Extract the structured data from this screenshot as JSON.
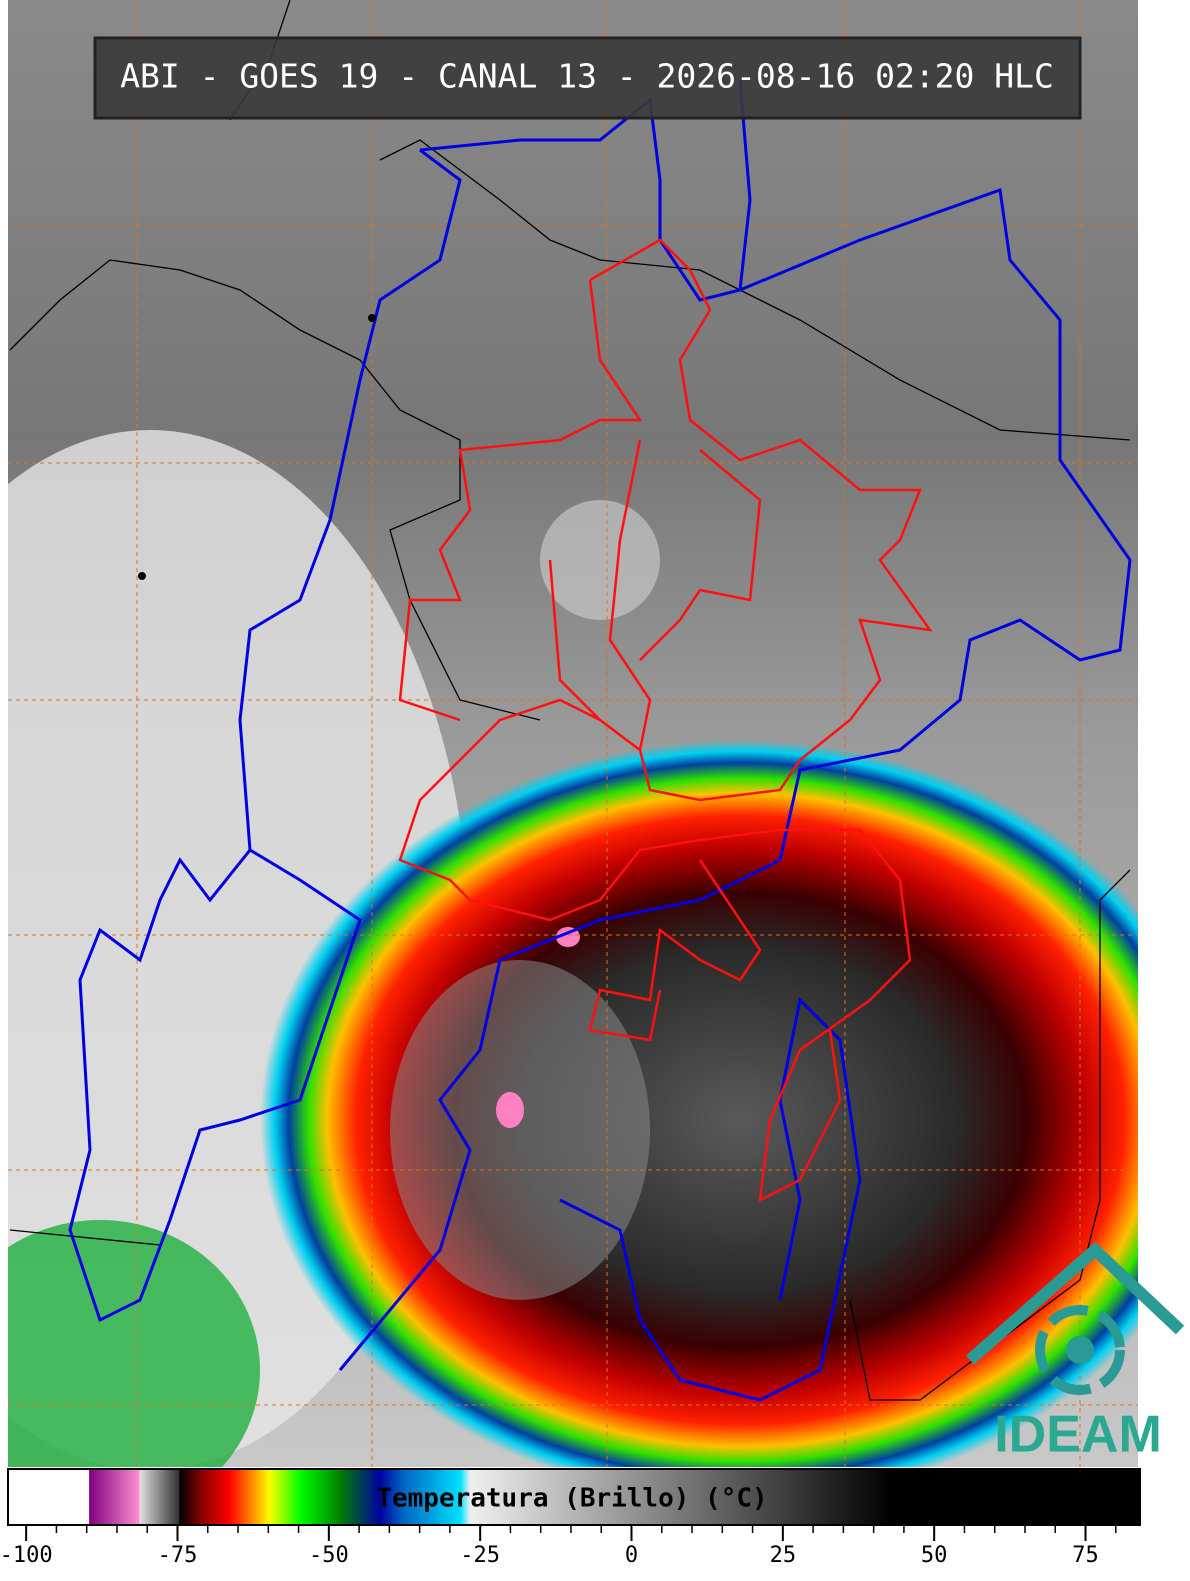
{
  "header": {
    "title": "ABI - GOES 19 - CANAL 13 - 2026-08-16 02:20 HLC"
  },
  "colorbar": {
    "label": "Temperatura (Brillo) (°C)",
    "lim": [
      -103,
      84
    ],
    "ticks": [
      -100,
      -75,
      -50,
      -25,
      0,
      25,
      50,
      75
    ],
    "minor_ticks": [
      -95,
      -90,
      -85,
      -80,
      -70,
      -65,
      -60,
      -55,
      -45,
      -40,
      -35,
      -30,
      -20,
      -15,
      -10,
      -5,
      5,
      10,
      15,
      20,
      30,
      35,
      40,
      45,
      55,
      60,
      65,
      70,
      80
    ],
    "color_stops": [
      {
        "value": -103,
        "color": "#ffffff"
      },
      {
        "value": -89.6,
        "color": "#ffffff"
      },
      {
        "value": -89.6,
        "color": "#800080"
      },
      {
        "value": -81.3,
        "color": "#ff90d0"
      },
      {
        "value": -81.3,
        "color": "#e0e0e0"
      },
      {
        "value": -74.7,
        "color": "#303030"
      },
      {
        "value": -74.7,
        "color": "#000000"
      },
      {
        "value": -71.4,
        "color": "#800000"
      },
      {
        "value": -66.4,
        "color": "#ff0000"
      },
      {
        "value": -63,
        "color": "#ff8000"
      },
      {
        "value": -59.8,
        "color": "#ffff00"
      },
      {
        "value": -54.8,
        "color": "#00ff00"
      },
      {
        "value": -48.2,
        "color": "#008000"
      },
      {
        "value": -41.6,
        "color": "#0000a0"
      },
      {
        "value": -38,
        "color": "#0060c0"
      },
      {
        "value": -28.3,
        "color": "#00e0ff"
      },
      {
        "value": -26.7,
        "color": "#f0f0f0"
      },
      {
        "value": 42.9,
        "color": "#000000"
      },
      {
        "value": 84,
        "color": "#000000"
      }
    ]
  },
  "logo": {
    "text": "IDEAM"
  }
}
